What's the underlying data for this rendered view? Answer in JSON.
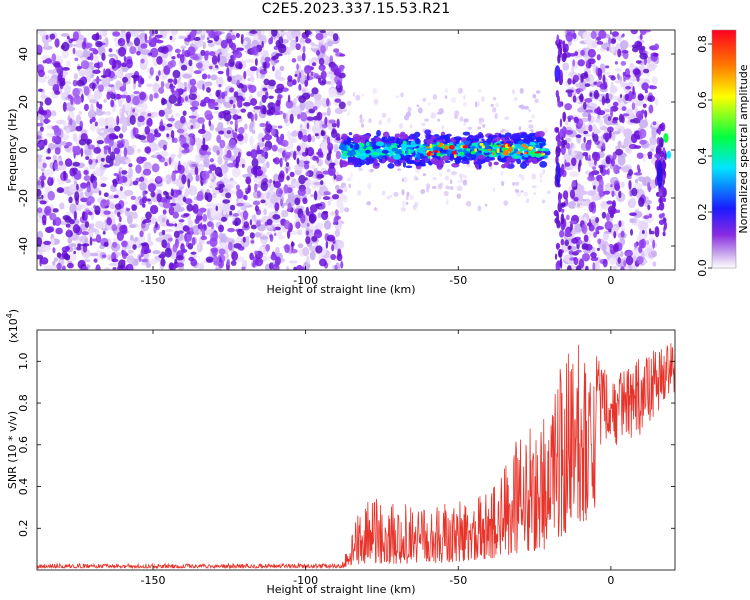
{
  "title": "C2E5.2023.337.15.53.R21",
  "chart_data": [
    {
      "type": "heatmap",
      "title": "C2E5.2023.337.15.53.R21",
      "xlabel": "Height of straight line (km)",
      "ylabel": "Frequency (Hz)",
      "xlim": [
        -188,
        21
      ],
      "ylim": [
        -50,
        50
      ],
      "xticks": [
        -150,
        -100,
        -50,
        0
      ],
      "yticks": [
        -40,
        -20,
        0,
        20,
        40
      ],
      "colorbar": {
        "label": "Normalized spectral amplitude",
        "range": [
          0.0,
          0.85
        ],
        "ticks": [
          0.0,
          0.2,
          0.4,
          0.6,
          0.8
        ],
        "colormap": "rainbow (purple-blue-cyan-green-yellow-red)"
      },
      "regions": [
        {
          "x": [
            -188,
            -88
          ],
          "freq": [
            -50,
            50
          ],
          "description": "broadband noise"
        },
        {
          "x": [
            -88,
            -20
          ],
          "freq": [
            -8,
            8
          ],
          "description": "narrow band near 0 Hz"
        },
        {
          "x": [
            -18,
            -15
          ],
          "freq": [
            -50,
            50
          ],
          "description": "vertical strip"
        },
        {
          "x": [
            -15,
            15
          ],
          "freq": [
            -50,
            50
          ],
          "description": "broadband noise"
        },
        {
          "x": [
            15,
            21
          ],
          "freq": [
            -35,
            10
          ],
          "description": "vertical strip"
        }
      ],
      "grid": false
    },
    {
      "type": "line",
      "xlabel": "Height of straight line (km)",
      "ylabel": "SNR (10 * v/v)",
      "y_multiplier_label": "(x10",
      "y_multiplier_exponent": "4",
      "y_multiplier_close": ")",
      "xlim": [
        -188,
        21
      ],
      "ylim": [
        0,
        1.15
      ],
      "xticks": [
        -150,
        -100,
        -50,
        0
      ],
      "yticks": [
        0.2,
        0.4,
        0.6,
        0.8,
        1.0
      ],
      "series": [
        {
          "color": "#e8332a",
          "envelope": [
            {
              "x": -188,
              "min": 0.01,
              "max": 0.03
            },
            {
              "x": -88,
              "min": 0.01,
              "max": 0.03
            },
            {
              "x": -85,
              "min": 0.02,
              "max": 0.2
            },
            {
              "x": -80,
              "min": 0.03,
              "max": 0.35
            },
            {
              "x": -60,
              "min": 0.03,
              "max": 0.3
            },
            {
              "x": -40,
              "min": 0.05,
              "max": 0.38
            },
            {
              "x": -30,
              "min": 0.08,
              "max": 0.65
            },
            {
              "x": -20,
              "min": 0.1,
              "max": 0.88
            },
            {
              "x": -10,
              "min": 0.2,
              "max": 1.15
            },
            {
              "x": 0,
              "min": 0.4,
              "max": 0.92
            },
            {
              "x": 10,
              "min": 0.45,
              "max": 1.02
            },
            {
              "x": 20,
              "min": 0.7,
              "max": 1.1
            }
          ]
        }
      ],
      "grid": false
    }
  ]
}
